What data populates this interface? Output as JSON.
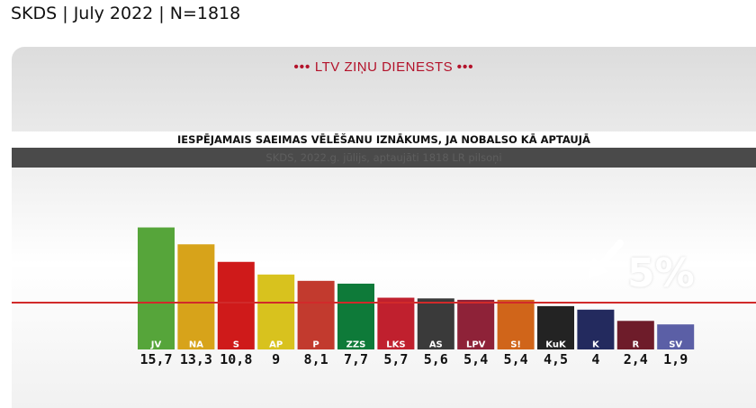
{
  "caption": "SKDS | July 2022 | N=1818",
  "brand": {
    "dots_left": "•••",
    "name": "LTV ZIŅU DIENESTS",
    "dots_right": "•••"
  },
  "threshold_label": "5%",
  "colors": {
    "brand": "#b3122a",
    "threshold_line": "#d12a2a"
  },
  "chart_data": {
    "type": "bar",
    "title": "IESPĒJAMAIS SAEIMAS VĒLĒŠANU IZNĀKUMS, JA NOBALSO KĀ APTAUJĀ",
    "subtitle": "SKDS, 2022.g. jūlijs, aptaujāti 1818 LR pilsoņi",
    "categories": [
      "JV",
      "NA",
      "S",
      "AP",
      "P",
      "ZZS",
      "LKS",
      "AS",
      "LPV",
      "S!",
      "KuK",
      "K",
      "R",
      "SV"
    ],
    "values": [
      15.7,
      13.3,
      10.8,
      9,
      8.1,
      7.7,
      5.7,
      5.6,
      5.4,
      5.4,
      4.5,
      4,
      2.4,
      1.9
    ],
    "value_labels": [
      "15,7",
      "13,3",
      "10,8",
      "9",
      "8,1",
      "7,7",
      "5,7",
      "5,6",
      "5,4",
      "5,4",
      "4,5",
      "4",
      "2,4",
      "1,9"
    ],
    "bar_colors": [
      "#56a53a",
      "#d7a31a",
      "#cf1a1a",
      "#d8c21e",
      "#c23a2e",
      "#0e7a39",
      "#c0202e",
      "#3a3a3a",
      "#8e2238",
      "#d0651a",
      "#232323",
      "#232a5e",
      "#6e1c2a",
      "#5b5fa6"
    ],
    "threshold": 5,
    "ylim": [
      0,
      16.5
    ]
  }
}
